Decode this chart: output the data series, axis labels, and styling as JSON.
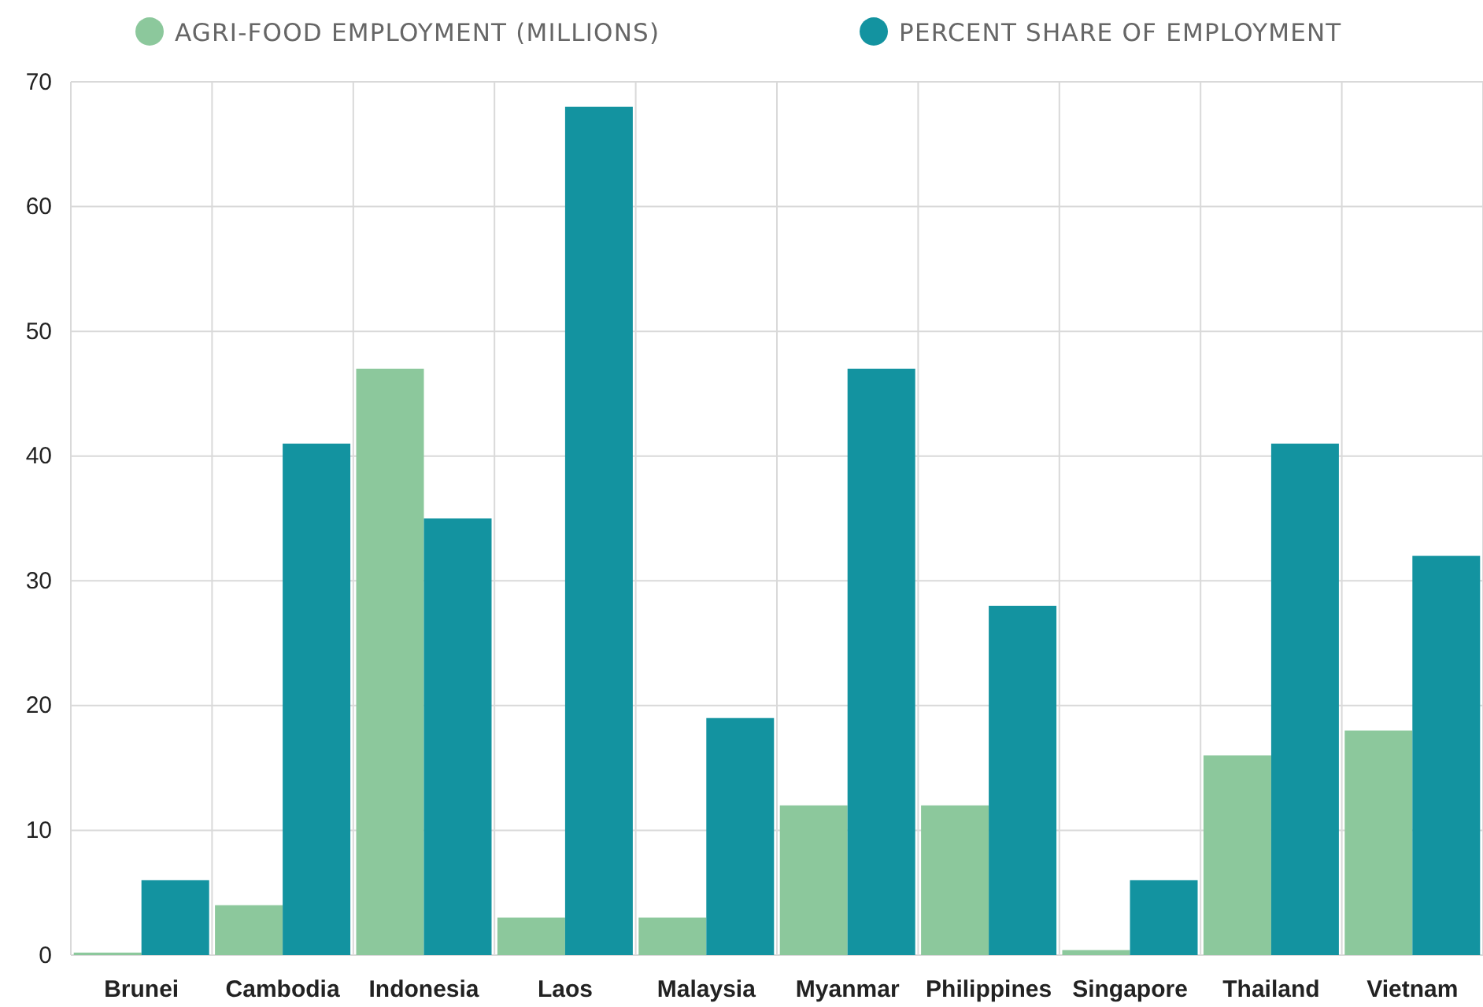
{
  "chart_data": {
    "type": "bar",
    "categories": [
      "Brunei",
      "Cambodia",
      "Indonesia",
      "Laos",
      "Malaysia",
      "Myanmar",
      "Philippines",
      "Singapore",
      "Thailand",
      "Vietnam"
    ],
    "series": [
      {
        "name": "AGRI-FOOD EMPLOYMENT (MILLIONS)",
        "color": "#8cc89c",
        "values": [
          0.2,
          4,
          47,
          3,
          3,
          12,
          12,
          0.4,
          16,
          18
        ]
      },
      {
        "name": "PERCENT SHARE OF EMPLOYMENT",
        "color": "#1393a0",
        "values": [
          6,
          41,
          35,
          68,
          19,
          47,
          28,
          6,
          41,
          32
        ]
      }
    ],
    "ylim": [
      0,
      70
    ],
    "yticks": [
      0,
      10,
      20,
      30,
      40,
      50,
      60,
      70
    ],
    "grid": true,
    "legend": "top",
    "marker": "circle"
  }
}
